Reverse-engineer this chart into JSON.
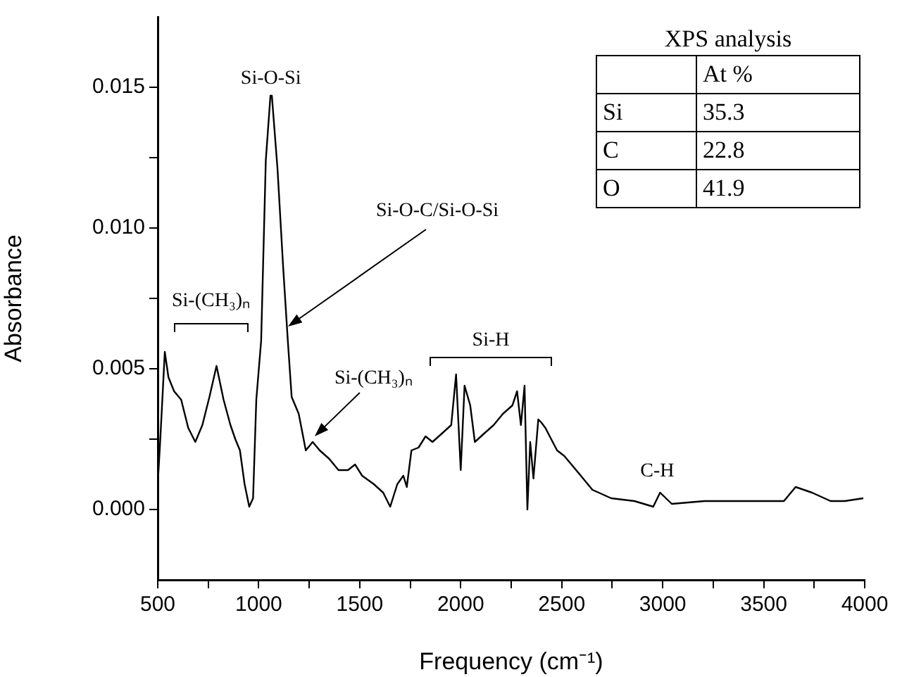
{
  "chart_data": {
    "type": "line",
    "xlabel": "Frequency (cm⁻¹)",
    "ylabel": "Absorbance",
    "x": [
      500,
      512,
      535,
      553,
      581,
      616,
      651,
      686,
      721,
      756,
      791,
      826,
      860,
      884,
      907,
      930,
      953,
      972,
      988,
      1012,
      1035,
      1058,
      1065,
      1093,
      1121,
      1144,
      1163,
      1198,
      1233,
      1267,
      1302,
      1349,
      1395,
      1442,
      1477,
      1512,
      1570,
      1616,
      1651,
      1686,
      1716,
      1733,
      1756,
      1791,
      1826,
      1860,
      1907,
      1953,
      1977,
      2000,
      2019,
      2047,
      2070,
      2116,
      2163,
      2209,
      2256,
      2279,
      2298,
      2316,
      2330,
      2344,
      2360,
      2384,
      2398,
      2419,
      2477,
      2513,
      2583,
      2652,
      2745,
      2860,
      2953,
      2987,
      3045,
      3207,
      3438,
      3600,
      3658,
      3739,
      3831,
      3901,
      3993
    ],
    "series": [
      {
        "color": "#000000",
        "values": [
          0.0009,
          0.0024,
          0.0056,
          0.0047,
          0.0042,
          0.0039,
          0.0029,
          0.0024,
          0.003,
          0.004,
          0.0051,
          0.0039,
          0.003,
          0.0025,
          0.0021,
          0.0009,
          0.0001,
          0.0004,
          0.0039,
          0.006,
          0.0124,
          0.0147,
          0.0147,
          0.0121,
          0.0086,
          0.006,
          0.004,
          0.0034,
          0.0021,
          0.0024,
          0.0021,
          0.0018,
          0.0014,
          0.0014,
          0.0016,
          0.0012,
          0.0009,
          0.0006,
          0.0001,
          0.0009,
          0.0012,
          0.0008,
          0.0021,
          0.0022,
          0.0026,
          0.0024,
          0.0027,
          0.003,
          0.0048,
          0.0014,
          0.0044,
          0.0037,
          0.0024,
          0.0027,
          0.003,
          0.0034,
          0.0037,
          0.0042,
          0.003,
          0.0044,
          0.0,
          0.0024,
          0.0011,
          0.0032,
          0.0031,
          0.0029,
          0.0021,
          0.0019,
          0.0013,
          0.0007,
          0.0004,
          0.0003,
          0.0001,
          0.0006,
          0.0002,
          0.0003,
          0.0003,
          0.0003,
          0.0008,
          0.0006,
          0.0003,
          0.0003,
          0.0004
        ]
      }
    ],
    "xlim": [
      500,
      4000
    ],
    "xticks": [
      500,
      {
        "value": 750,
        "label": null
      },
      1000,
      {
        "value": 1250,
        "label": null
      },
      1500,
      {
        "value": 1750,
        "label": null
      },
      2000,
      {
        "value": 2250,
        "label": null
      },
      2500,
      {
        "value": 2750,
        "label": null
      },
      3000,
      {
        "value": 3250,
        "label": null
      },
      3500,
      {
        "value": 3750,
        "label": null
      },
      4000
    ],
    "ylim": [
      -0.0025,
      0.0175
    ],
    "yticks": [
      {
        "value": 0,
        "label": "0.000"
      },
      {
        "value": 0.0025,
        "label": null
      },
      {
        "value": 0.005,
        "label": "0.005"
      },
      {
        "value": 0.0075,
        "label": null
      },
      {
        "value": 0.01,
        "label": "0.010"
      },
      {
        "value": 0.0125,
        "label": null
      },
      {
        "value": 0.015,
        "label": "0.015"
      }
    ],
    "grid": false,
    "legend": false,
    "marker": "none",
    "line_style": "solid",
    "annotations": [
      {
        "text": "Si-O-Si",
        "x": 1060,
        "y": 0.0147
      },
      {
        "text": "Si-O-C/Si-O-Si",
        "x": 1145,
        "y": 0.0065
      },
      {
        "text": "Si-(CH₃)ₙ",
        "x": 1277,
        "y": 0.0026
      },
      "Si-(CH₃)ₙ",
      "Si-H",
      "C-H",
      "XPS analysis",
      "At %",
      "Si",
      "35.3",
      "C",
      "22.8",
      "O",
      "41.9"
    ]
  }
}
